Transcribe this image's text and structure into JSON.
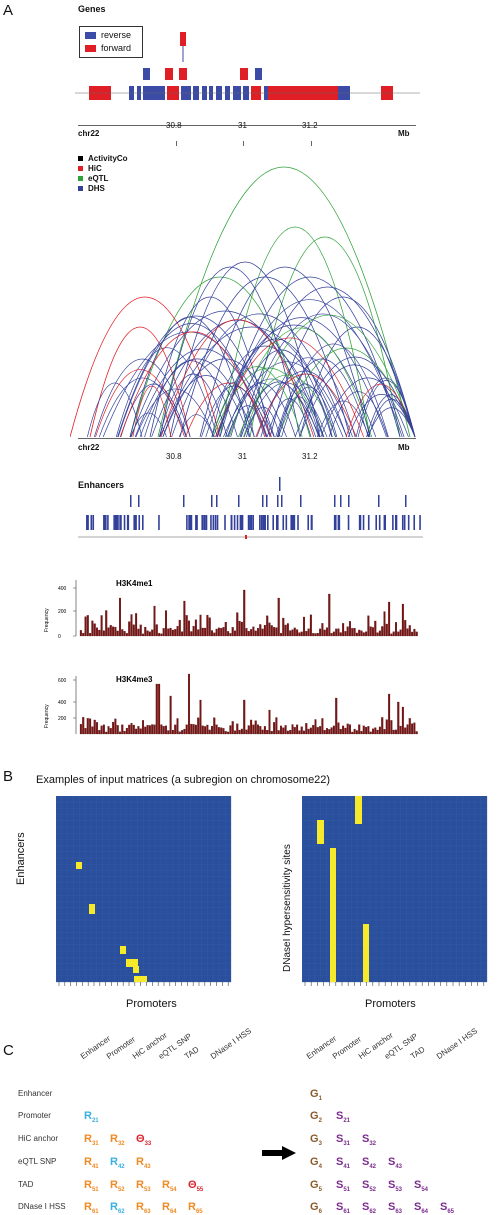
{
  "panels": {
    "a": "A",
    "b": "B",
    "c": "C"
  },
  "genes": {
    "title": "Genes",
    "legend": [
      {
        "label": "reverse",
        "color": "#3b4ba6"
      },
      {
        "label": "forward",
        "color": "#e01e26"
      }
    ]
  },
  "axis": {
    "chrom": "chr22",
    "unit": "Mb",
    "ticks": [
      "30.8",
      "31",
      "31.2"
    ]
  },
  "interactions": {
    "legend": [
      {
        "label": "ActivityCo",
        "color": "#000000"
      },
      {
        "label": "HiC",
        "color": "#e01e26"
      },
      {
        "label": "eQTL",
        "color": "#2fa23a"
      },
      {
        "label": "DHS",
        "color": "#33409a"
      }
    ]
  },
  "enhancers": {
    "title": "Enhancers"
  },
  "histone": [
    {
      "title": "H3K4me1",
      "ylabel": "Frequency",
      "yticks": [
        "0",
        "200",
        "400"
      ],
      "color": "#7b1414"
    },
    {
      "title": "H3K4me3",
      "ylabel": "Frequency",
      "yticks": [
        "200",
        "400",
        "600"
      ],
      "color": "#7b1414"
    }
  ],
  "matrices": {
    "title": "Examples of input matrices (a subregion on chromosome22)",
    "left": {
      "ylabel": "Enhancers",
      "xlabel": "Promoters"
    },
    "right": {
      "ylabel": "DNaseI hypersensitivity sites",
      "xlabel": "Promoters"
    },
    "bg_color": "#2a4f9c",
    "hit_color": "#f6ea2b"
  },
  "table": {
    "columns": [
      "Enhancer",
      "Promoter",
      "HiC anchor",
      "eQTL SNP",
      "TAD",
      "DNase I HSS"
    ],
    "rows": [
      "Enhancer",
      "Promoter",
      "HiC anchor",
      "eQTL SNP",
      "TAD",
      "DNase I HSS"
    ],
    "left_cells": [
      [],
      [
        {
          "s": "R",
          "sub": "21",
          "c": "#3ab0e0"
        }
      ],
      [
        {
          "s": "R",
          "sub": "31",
          "c": "#f08a24"
        },
        {
          "s": "R",
          "sub": "32",
          "c": "#f08a24"
        },
        {
          "s": "Θ",
          "sub": "33",
          "c": "#d8262c"
        }
      ],
      [
        {
          "s": "R",
          "sub": "41",
          "c": "#f08a24"
        },
        {
          "s": "R",
          "sub": "42",
          "c": "#3ab0e0"
        },
        {
          "s": "R",
          "sub": "43",
          "c": "#f08a24"
        }
      ],
      [
        {
          "s": "R",
          "sub": "51",
          "c": "#f08a24"
        },
        {
          "s": "R",
          "sub": "52",
          "c": "#f08a24"
        },
        {
          "s": "R",
          "sub": "53",
          "c": "#f08a24"
        },
        {
          "s": "R",
          "sub": "54",
          "c": "#f08a24"
        },
        {
          "s": "Θ",
          "sub": "55",
          "c": "#d8262c"
        }
      ],
      [
        {
          "s": "R",
          "sub": "61",
          "c": "#f08a24"
        },
        {
          "s": "R",
          "sub": "62",
          "c": "#3ab0e0"
        },
        {
          "s": "R",
          "sub": "63",
          "c": "#f08a24"
        },
        {
          "s": "R",
          "sub": "64",
          "c": "#f08a24"
        },
        {
          "s": "R",
          "sub": "65",
          "c": "#f08a24"
        }
      ]
    ],
    "right_cells": [
      [
        {
          "s": "G",
          "sub": "1",
          "c": "#8b5a2b"
        }
      ],
      [
        {
          "s": "G",
          "sub": "2",
          "c": "#8b5a2b"
        },
        {
          "s": "S",
          "sub": "21",
          "c": "#7b2d8e"
        }
      ],
      [
        {
          "s": "G",
          "sub": "3",
          "c": "#8b5a2b"
        },
        {
          "s": "S",
          "sub": "31",
          "c": "#7b2d8e"
        },
        {
          "s": "S",
          "sub": "32",
          "c": "#7b2d8e"
        }
      ],
      [
        {
          "s": "G",
          "sub": "4",
          "c": "#8b5a2b"
        },
        {
          "s": "S",
          "sub": "41",
          "c": "#7b2d8e"
        },
        {
          "s": "S",
          "sub": "42",
          "c": "#7b2d8e"
        },
        {
          "s": "S",
          "sub": "43",
          "c": "#7b2d8e"
        }
      ],
      [
        {
          "s": "G",
          "sub": "5",
          "c": "#8b5a2b"
        },
        {
          "s": "S",
          "sub": "51",
          "c": "#7b2d8e"
        },
        {
          "s": "S",
          "sub": "52",
          "c": "#7b2d8e"
        },
        {
          "s": "S",
          "sub": "53",
          "c": "#7b2d8e"
        },
        {
          "s": "S",
          "sub": "54",
          "c": "#7b2d8e"
        }
      ],
      [
        {
          "s": "G",
          "sub": "6",
          "c": "#8b5a2b"
        },
        {
          "s": "S",
          "sub": "61",
          "c": "#7b2d8e"
        },
        {
          "s": "S",
          "sub": "62",
          "c": "#7b2d8e"
        },
        {
          "s": "S",
          "sub": "63",
          "c": "#7b2d8e"
        },
        {
          "s": "S",
          "sub": "64",
          "c": "#7b2d8e"
        },
        {
          "s": "S",
          "sub": "65",
          "c": "#7b2d8e"
        }
      ]
    ]
  }
}
